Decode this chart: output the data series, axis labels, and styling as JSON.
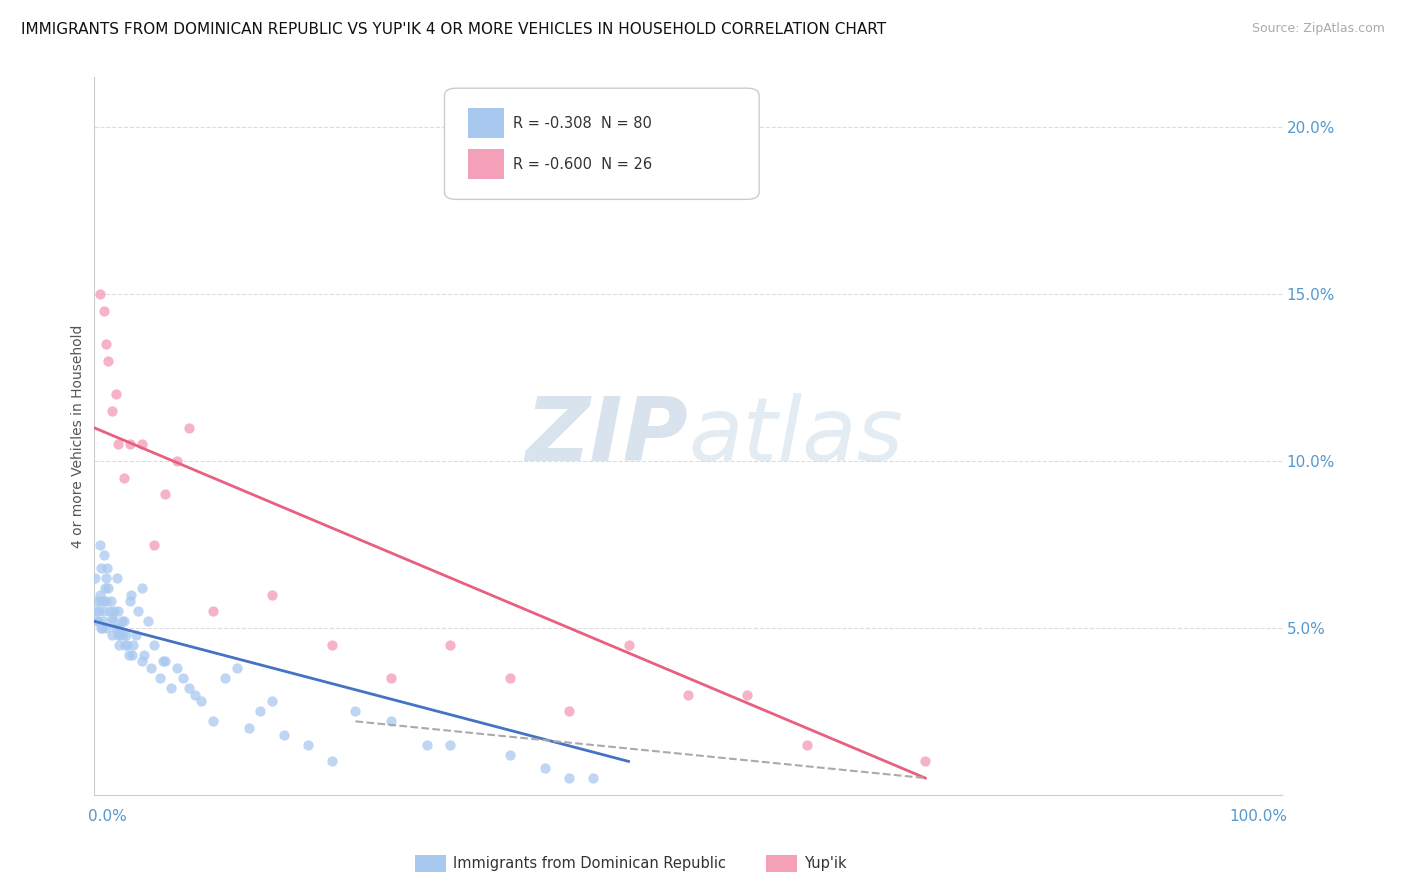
{
  "title": "IMMIGRANTS FROM DOMINICAN REPUBLIC VS YUP'IK 4 OR MORE VEHICLES IN HOUSEHOLD CORRELATION CHART",
  "source": "Source: ZipAtlas.com",
  "ylabel": "4 or more Vehicles in Household",
  "legend_label1": "Immigrants from Dominican Republic",
  "legend_label2": "Yup'ik",
  "blue_color": "#a8c8f0",
  "pink_color": "#f4a0b8",
  "blue_line_color": "#4472c4",
  "pink_line_color": "#e86080",
  "dashed_line_color": "#aaaaaa",
  "blue_scatter_x": [
    0.1,
    0.2,
    0.3,
    0.4,
    0.5,
    0.5,
    0.6,
    0.6,
    0.7,
    0.7,
    0.8,
    0.8,
    0.9,
    1.0,
    1.0,
    1.0,
    1.1,
    1.2,
    1.3,
    1.4,
    1.5,
    1.5,
    1.6,
    1.7,
    1.8,
    1.9,
    2.0,
    2.0,
    2.1,
    2.1,
    2.2,
    2.3,
    2.4,
    2.5,
    2.6,
    2.7,
    2.8,
    2.9,
    3.0,
    3.1,
    3.2,
    3.3,
    3.5,
    3.7,
    4.0,
    4.0,
    4.2,
    4.5,
    4.8,
    5.0,
    5.5,
    5.8,
    6.0,
    6.5,
    7.0,
    7.5,
    8.0,
    8.5,
    9.0,
    10.0,
    11.0,
    12.0,
    13.0,
    14.0,
    15.0,
    16.0,
    18.0,
    20.0,
    22.0,
    25.0,
    28.0,
    30.0,
    35.0,
    38.0,
    40.0,
    42.0,
    0.15,
    0.25,
    0.45,
    0.65
  ],
  "blue_scatter_y": [
    6.5,
    5.8,
    5.2,
    5.5,
    6.0,
    7.5,
    6.8,
    5.0,
    5.8,
    5.2,
    7.2,
    5.5,
    6.2,
    5.0,
    6.5,
    5.8,
    6.8,
    6.2,
    5.5,
    5.8,
    5.3,
    4.8,
    5.2,
    5.5,
    5.0,
    6.5,
    5.5,
    4.8,
    5.0,
    4.5,
    4.8,
    5.2,
    4.8,
    5.2,
    4.5,
    4.8,
    4.5,
    4.2,
    5.8,
    6.0,
    4.2,
    4.5,
    4.8,
    5.5,
    6.2,
    4.0,
    4.2,
    5.2,
    3.8,
    4.5,
    3.5,
    4.0,
    4.0,
    3.2,
    3.8,
    3.5,
    3.2,
    3.0,
    2.8,
    2.2,
    3.5,
    3.8,
    2.0,
    2.5,
    2.8,
    1.8,
    1.5,
    1.0,
    2.5,
    2.2,
    1.5,
    1.5,
    1.2,
    0.8,
    0.5,
    0.5,
    5.5,
    5.2,
    5.8,
    5.0
  ],
  "pink_scatter_x": [
    0.5,
    1.0,
    1.5,
    1.8,
    2.0,
    3.0,
    4.0,
    5.0,
    6.0,
    7.0,
    8.0,
    10.0,
    15.0,
    20.0,
    25.0,
    30.0,
    35.0,
    40.0,
    45.0,
    50.0,
    55.0,
    60.0,
    70.0,
    0.8,
    1.2,
    2.5
  ],
  "pink_scatter_y": [
    15.0,
    13.5,
    11.5,
    12.0,
    10.5,
    10.5,
    10.5,
    7.5,
    9.0,
    10.0,
    11.0,
    5.5,
    6.0,
    4.5,
    3.5,
    4.5,
    3.5,
    2.5,
    4.5,
    3.0,
    3.0,
    1.5,
    1.0,
    14.5,
    13.0,
    9.5
  ],
  "blue_line_x": [
    0.0,
    45.0
  ],
  "blue_line_y": [
    5.2,
    1.0
  ],
  "pink_line_x": [
    0.0,
    70.0
  ],
  "pink_line_y": [
    11.0,
    0.5
  ],
  "dashed_line_x": [
    22.0,
    70.0
  ],
  "dashed_line_y": [
    2.2,
    0.5
  ],
  "xlim": [
    0.0,
    100.0
  ],
  "ylim": [
    0.0,
    21.5
  ],
  "background_color": "#ffffff",
  "title_fontsize": 11,
  "grid_color": "#dddddd",
  "yticks": [
    0,
    5,
    10,
    15,
    20
  ],
  "ytick_labels": [
    "",
    "5.0%",
    "10.0%",
    "15.0%",
    "20.0%"
  ],
  "right_tick_color": "#5599cc"
}
